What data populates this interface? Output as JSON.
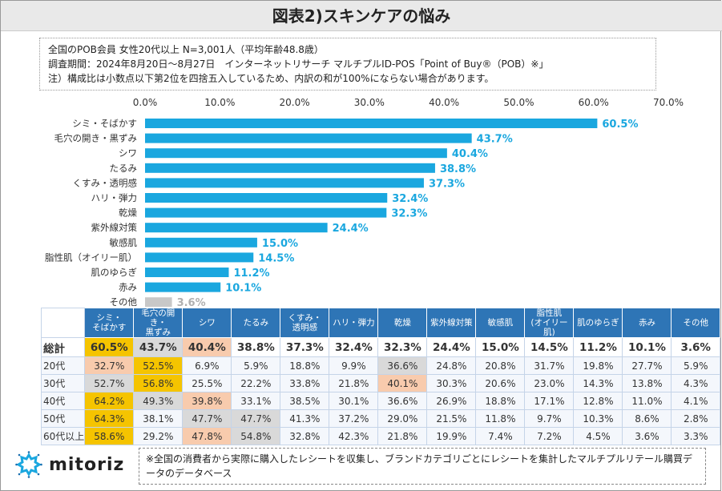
{
  "title": "図表2)スキンケアの悩み",
  "note": [
    "全国のPOB会員 女性20代以上 N=3,001人（平均年齢48.8歳）",
    "調査期間：2024年8月20日～8月27日　インターネットリサーチ マルチプルID-POS「Point of Buy®（POB）※」",
    "注）構成比は小数点以下第2位を四捨五入しているため、内訳の和が100%にならない場合があります。"
  ],
  "chart_data": {
    "type": "bar",
    "orientation": "horizontal",
    "categories": [
      "シミ・そばかす",
      "毛穴の開き・黒ずみ",
      "シワ",
      "たるみ",
      "くすみ・透明感",
      "ハリ・弾力",
      "乾燥",
      "紫外線対策",
      "敏感肌",
      "脂性肌（オイリー肌）",
      "肌のゆらぎ",
      "赤み",
      "その他"
    ],
    "values": [
      60.5,
      43.7,
      40.4,
      38.8,
      37.3,
      32.4,
      32.3,
      24.4,
      15.0,
      14.5,
      11.2,
      10.1,
      3.6
    ],
    "value_labels": [
      "60.5%",
      "43.7%",
      "40.4%",
      "38.8%",
      "37.3%",
      "32.4%",
      "32.3%",
      "24.4%",
      "15.0%",
      "14.5%",
      "11.2%",
      "10.1%",
      "3.6%"
    ],
    "xlim": [
      0,
      70
    ],
    "ticks": [
      "0.0%",
      "10.0%",
      "20.0%",
      "30.0%",
      "40.0%",
      "50.0%",
      "60.0%",
      "70.0%"
    ],
    "grid": false,
    "colors": {
      "bar": "#1aa7df",
      "other": "#c8c8c8",
      "label": "#1aa7df",
      "other_label": "#b0b0b0"
    }
  },
  "table": {
    "headers": [
      "シミ・\nそばかす",
      "毛穴の開き・\n黒ずみ",
      "シワ",
      "たるみ",
      "くすみ・\n透明感",
      "ハリ・弾力",
      "乾燥",
      "紫外線対策",
      "敏感肌",
      "脂性肌\n(オイリー肌)",
      "肌のゆらぎ",
      "赤み",
      "その他"
    ],
    "rows": [
      {
        "label": "総計",
        "values": [
          "60.5%",
          "43.7%",
          "40.4%",
          "38.8%",
          "37.3%",
          "32.4%",
          "32.3%",
          "24.4%",
          "15.0%",
          "14.5%",
          "11.2%",
          "10.1%",
          "3.6%"
        ],
        "highlight": [
          "Y",
          "G",
          "S",
          "",
          "",
          "",
          "",
          "",
          "",
          "",
          "",
          "",
          ""
        ]
      },
      {
        "label": "20代",
        "values": [
          "32.7%",
          "52.5%",
          "6.9%",
          "5.9%",
          "18.8%",
          "9.9%",
          "36.6%",
          "24.8%",
          "20.8%",
          "31.7%",
          "19.8%",
          "27.7%",
          "5.9%"
        ],
        "highlight": [
          "S",
          "Y",
          "",
          "",
          "",
          "",
          "G",
          "",
          "",
          "",
          "",
          "",
          ""
        ]
      },
      {
        "label": "30代",
        "values": [
          "52.7%",
          "56.8%",
          "25.5%",
          "22.2%",
          "33.8%",
          "21.8%",
          "40.1%",
          "30.3%",
          "20.6%",
          "23.0%",
          "14.3%",
          "13.8%",
          "4.3%"
        ],
        "highlight": [
          "G",
          "Y",
          "",
          "",
          "",
          "",
          "S",
          "",
          "",
          "",
          "",
          "",
          ""
        ]
      },
      {
        "label": "40代",
        "values": [
          "64.2%",
          "49.3%",
          "39.8%",
          "33.1%",
          "38.5%",
          "30.1%",
          "36.6%",
          "26.9%",
          "18.8%",
          "17.1%",
          "12.8%",
          "11.0%",
          "4.1%"
        ],
        "highlight": [
          "Y",
          "G",
          "S",
          "",
          "",
          "",
          "",
          "",
          "",
          "",
          "",
          "",
          ""
        ]
      },
      {
        "label": "50代",
        "values": [
          "64.3%",
          "38.1%",
          "47.7%",
          "47.7%",
          "41.3%",
          "37.2%",
          "29.0%",
          "21.5%",
          "11.8%",
          "9.7%",
          "10.3%",
          "8.6%",
          "2.8%"
        ],
        "highlight": [
          "Y",
          "",
          "G",
          "G",
          "",
          "",
          "",
          "",
          "",
          "",
          "",
          "",
          ""
        ]
      },
      {
        "label": "60代以上",
        "values": [
          "58.6%",
          "29.2%",
          "47.8%",
          "54.8%",
          "32.8%",
          "42.3%",
          "21.8%",
          "19.9%",
          "7.4%",
          "7.2%",
          "4.5%",
          "3.6%",
          "3.3%"
        ],
        "highlight": [
          "Y",
          "",
          "S",
          "G",
          "",
          "",
          "",
          "",
          "",
          "",
          "",
          "",
          ""
        ]
      }
    ],
    "colors": {
      "Y": "#f5c400",
      "G": "#d9d9d9",
      "S": "#f8cbad",
      "header": "#2e75b6"
    }
  },
  "logo": {
    "text": "mitoriz"
  },
  "footnote": "※全国の消費者から実際に購入したレシートを収集し、ブランドカテゴリごとにレシートを集計したマルチプルリテール購買データのデータベース"
}
